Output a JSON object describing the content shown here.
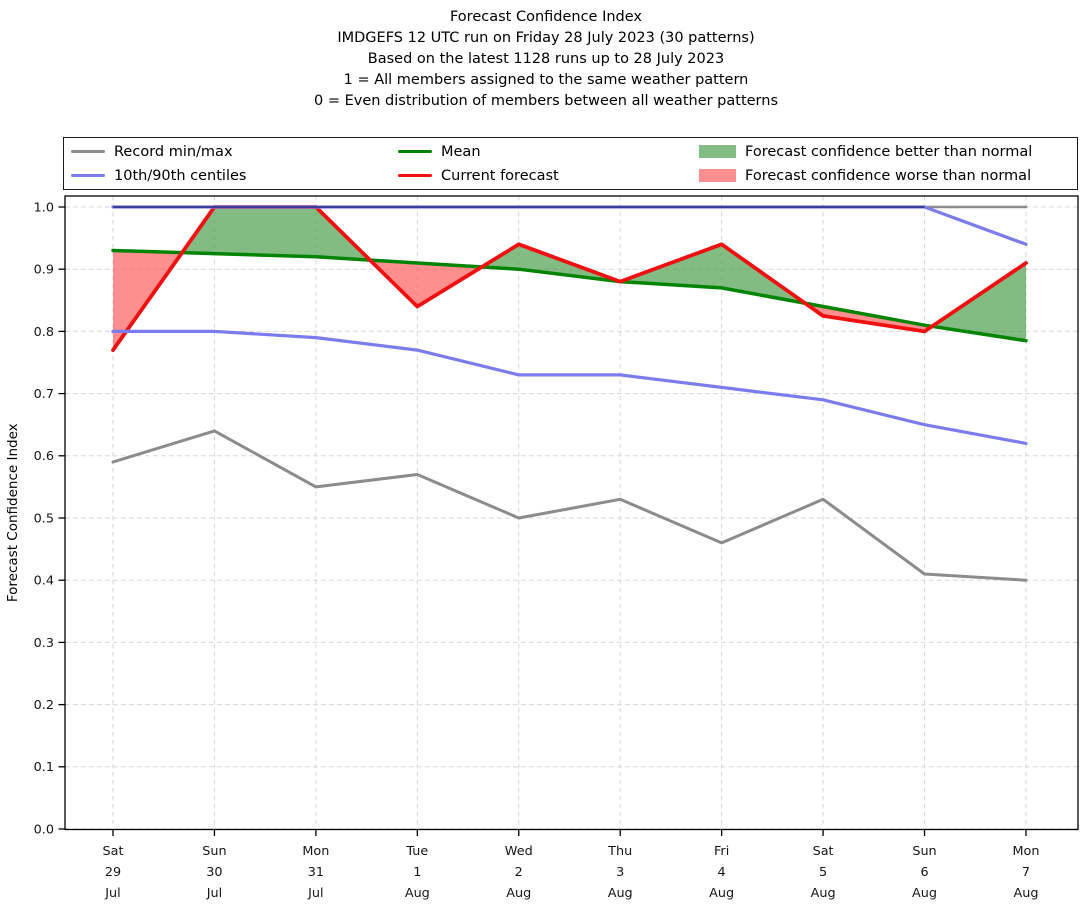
{
  "title": {
    "lines": [
      "Forecast Confidence Index",
      "IMDGEFS 12 UTC run on Friday 28 July 2023 (30 patterns)",
      "Based on the latest 1128 runs up to 28 July 2023",
      "1 = All members assigned to the same weather pattern",
      "0 = Even distribution of members between all weather patterns"
    ]
  },
  "legend": {
    "items": [
      {
        "label": "Record min/max",
        "swatch": "line",
        "color": "#8c8c8c"
      },
      {
        "label": "10th/90th centiles",
        "swatch": "line",
        "color": "#7c7cee"
      },
      {
        "label": "Mean",
        "swatch": "line",
        "color": "#048404"
      },
      {
        "label": "Current forecast",
        "swatch": "line",
        "color": "#ef1111"
      },
      {
        "label": "Forecast confidence better than normal",
        "swatch": "patch",
        "color": "#84bd84"
      },
      {
        "label": "Forecast confidence worse than normal",
        "swatch": "patch",
        "color": "#fb8f8f"
      }
    ]
  },
  "axes": {
    "ylabel": "Forecast Confidence Index",
    "yticks": [
      "1.0",
      "0.9",
      "0.8",
      "0.7",
      "0.6",
      "0.5",
      "0.4",
      "0.3",
      "0.2",
      "0.1",
      "0.0"
    ],
    "ylim": [
      0.0,
      1.0
    ],
    "grid": "dashed"
  },
  "chart_data": {
    "type": "line",
    "title": "Forecast Confidence Index",
    "xlabel": "",
    "ylabel": "Forecast Confidence Index",
    "ylim": [
      0.0,
      1.0
    ],
    "x_labels": [
      [
        "Sat",
        "29",
        "Jul"
      ],
      [
        "Sun",
        "30",
        "Jul"
      ],
      [
        "Mon",
        "31",
        "Jul"
      ],
      [
        "Tue",
        "1",
        "Aug"
      ],
      [
        "Wed",
        "2",
        "Aug"
      ],
      [
        "Thu",
        "3",
        "Aug"
      ],
      [
        "Fri",
        "4",
        "Aug"
      ],
      [
        "Sat",
        "5",
        "Aug"
      ],
      [
        "Sun",
        "6",
        "Aug"
      ],
      [
        "Mon",
        "7",
        "Aug"
      ]
    ],
    "series": [
      {
        "name": "Record min",
        "color": "#8c8c8c",
        "width": 3.0,
        "values": [
          0.59,
          0.64,
          0.55,
          0.57,
          0.5,
          0.53,
          0.46,
          0.53,
          0.41,
          0.4
        ]
      },
      {
        "name": "Record max",
        "color": "#8c8c8c",
        "width": 2.6,
        "values": [
          1.0,
          1.0,
          1.0,
          1.0,
          1.0,
          1.0,
          1.0,
          1.0,
          1.0,
          1.0
        ]
      },
      {
        "name": "Mean",
        "color": "#048404",
        "width": 3.5,
        "values": [
          0.93,
          0.925,
          0.92,
          0.91,
          0.9,
          0.88,
          0.87,
          0.84,
          0.81,
          0.785
        ]
      },
      {
        "name": "Current forecast",
        "color": "#ef1111",
        "width": 3.8,
        "values": [
          0.77,
          1.0,
          1.0,
          0.84,
          0.94,
          0.88,
          0.94,
          0.825,
          0.8,
          0.91
        ]
      },
      {
        "name": "90th centile",
        "color": "#7c7cee",
        "width": 3.2,
        "values": [
          1.0,
          1.0,
          1.0,
          1.0,
          1.0,
          1.0,
          1.0,
          1.0,
          1.0,
          0.94
        ]
      },
      {
        "name": "10th centile",
        "color": "#7c7cee",
        "width": 3.2,
        "values": [
          0.8,
          0.8,
          0.79,
          0.77,
          0.73,
          0.73,
          0.71,
          0.69,
          0.65,
          0.62
        ]
      }
    ],
    "fills": {
      "between": [
        "Current forecast",
        "Mean"
      ],
      "better_color": "#2f8f2f",
      "worse_color": "#ff4343",
      "opacity": 0.6
    },
    "overlap_core_color": "#3d3d99",
    "legend_position": "top"
  }
}
